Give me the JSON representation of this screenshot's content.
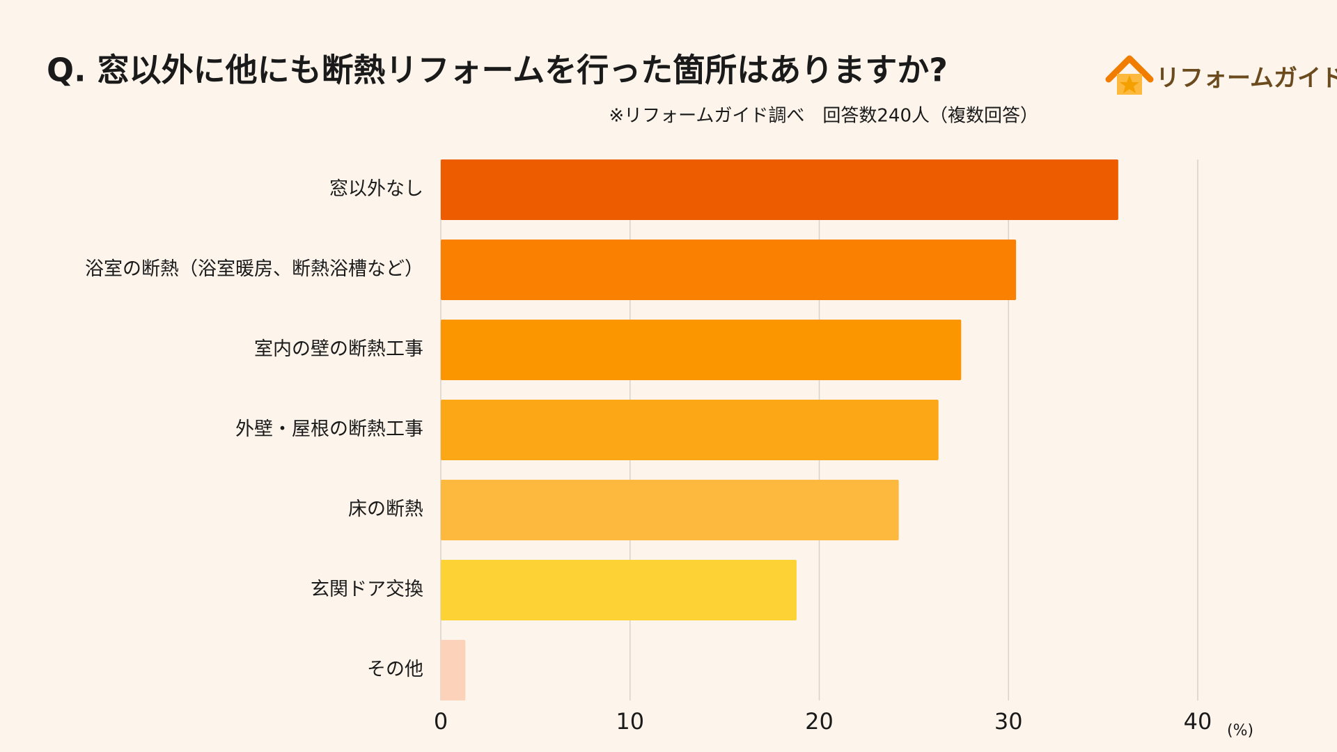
{
  "chart_data": {
    "type": "bar",
    "orientation": "horizontal",
    "title": "Q.  窓以外に他にも断熱リフォームを行った箇所はありますか?",
    "subtitle": "※リフォームガイド調べ　回答数240人（複数回答）",
    "logo": "リフォームガイド",
    "xlabel": "(%)",
    "categories": [
      "窓以外なし",
      "浴室の断熱（浴室暖房、断熱浴槽など）",
      "室内の壁の断熱工事",
      "外壁・屋根の断熱工事",
      "床の断熱",
      "玄関ドア交換",
      "その他"
    ],
    "values": [
      35.8,
      30.4,
      27.5,
      26.3,
      24.2,
      18.8,
      1.3
    ],
    "colors": [
      "#ee5c00",
      "#f98000",
      "#fb9500",
      "#fca816",
      "#fdb83e",
      "#fdd234",
      "#fdd2ba"
    ],
    "xlim": [
      0,
      40
    ],
    "xticks": [
      0,
      10,
      20,
      30,
      40
    ],
    "grid": true
  }
}
